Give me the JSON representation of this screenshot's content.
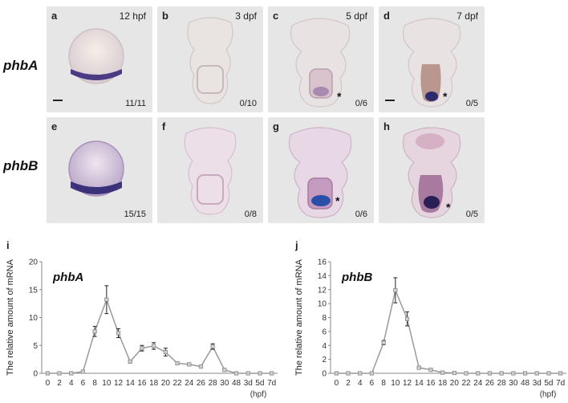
{
  "rows": {
    "top_label": "phbA",
    "bottom_label": "phbB"
  },
  "panels": [
    {
      "id": "a",
      "letter": "a",
      "time": "12 hpf",
      "count": "11/11"
    },
    {
      "id": "b",
      "letter": "b",
      "time": "3 dpf",
      "count": "0/10"
    },
    {
      "id": "c",
      "letter": "c",
      "time": "5 dpf",
      "count": "0/6"
    },
    {
      "id": "d",
      "letter": "d",
      "time": "7 dpf",
      "count": "0/5"
    },
    {
      "id": "e",
      "letter": "e",
      "time": "",
      "count": "15/15"
    },
    {
      "id": "f",
      "letter": "f",
      "time": "",
      "count": "0/8"
    },
    {
      "id": "g",
      "letter": "g",
      "time": "",
      "count": "0/6"
    },
    {
      "id": "h",
      "letter": "h",
      "time": "",
      "count": "0/5"
    }
  ],
  "asterisk": "*",
  "chart_data": [
    {
      "type": "line",
      "letter": "i",
      "title": "phbA",
      "ylabel": "The relative amount of mRNA",
      "xunit": "(hpf)",
      "x": [
        "0",
        "2",
        "4",
        "6",
        "8",
        "10",
        "12",
        "14",
        "16",
        "18",
        "20",
        "22",
        "24",
        "26",
        "28",
        "30",
        "48",
        "3d",
        "5d",
        "7d"
      ],
      "values": [
        0,
        0,
        0,
        0.3,
        7.5,
        13.2,
        7.2,
        2.1,
        4.5,
        4.9,
        3.8,
        1.8,
        1.6,
        1.2,
        4.8,
        0.6,
        0,
        0,
        0,
        0
      ],
      "errors": [
        0,
        0,
        0,
        0.1,
        0.9,
        2.5,
        0.8,
        0.2,
        0.5,
        0.6,
        0.7,
        0.2,
        0.1,
        0.1,
        0.5,
        0.1,
        0,
        0,
        0,
        0
      ],
      "yticks": [
        0,
        5,
        10,
        15,
        20
      ],
      "ylim": [
        0,
        20
      ],
      "color": "#9a9a9a"
    },
    {
      "type": "line",
      "letter": "j",
      "title": "phbB",
      "ylabel": "The relative amount of mRNA",
      "xunit": "(hpf)",
      "x": [
        "0",
        "2",
        "4",
        "6",
        "8",
        "10",
        "12",
        "14",
        "16",
        "18",
        "20",
        "22",
        "24",
        "26",
        "28",
        "30",
        "48",
        "3d",
        "5d",
        "7d"
      ],
      "values": [
        0,
        0,
        0,
        0,
        4.4,
        11.9,
        7.8,
        0.8,
        0.5,
        0.1,
        0.05,
        0,
        0,
        0,
        0,
        0,
        0,
        0,
        0,
        0
      ],
      "errors": [
        0,
        0,
        0,
        0,
        0.3,
        1.8,
        1.0,
        0.1,
        0.1,
        0,
        0,
        0,
        0,
        0,
        0,
        0,
        0,
        0,
        0,
        0
      ],
      "yticks": [
        0,
        2,
        4,
        6,
        8,
        10,
        12,
        14,
        16
      ],
      "ylim": [
        0,
        16
      ],
      "color": "#9a9a9a"
    }
  ]
}
